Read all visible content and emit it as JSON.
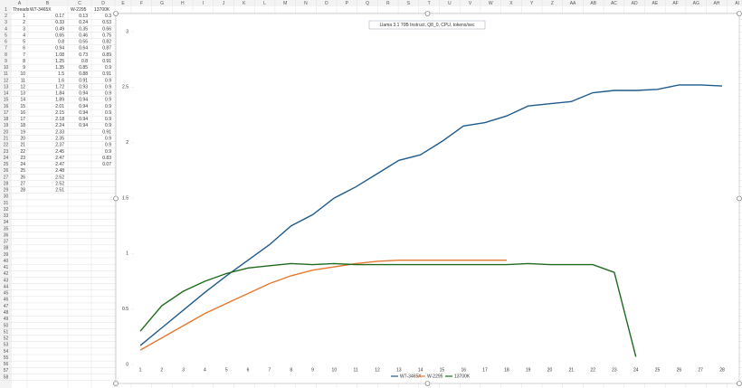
{
  "sheet": {
    "columns": [
      "A",
      "B",
      "C",
      "D",
      "E",
      "F",
      "G",
      "H",
      "I",
      "J",
      "K",
      "L",
      "M",
      "N",
      "O",
      "P",
      "Q",
      "R",
      "S",
      "T",
      "U",
      "V",
      "W",
      "X",
      "Y",
      "Z",
      "AA",
      "AB",
      "AC",
      "AD",
      "AE",
      "AF",
      "AG",
      "AH",
      "AI"
    ],
    "row_numbers": [
      1,
      2,
      3,
      4,
      5,
      6,
      7,
      8,
      9,
      10,
      11,
      12,
      13,
      14,
      15,
      16,
      17,
      18,
      19,
      20,
      21,
      22,
      23,
      24,
      25,
      26,
      27,
      28,
      29,
      30,
      31,
      32,
      33,
      34,
      35,
      36,
      37,
      38,
      39,
      40,
      41,
      42,
      43,
      44,
      45,
      46,
      47,
      48,
      49,
      50,
      51,
      52,
      53,
      54,
      55,
      56,
      57,
      58
    ],
    "threads_header": "Threads"
  },
  "chart_data": {
    "type": "line",
    "title": "Llama 3.1 70B Instruct, Q8_0, CPU, tokens/sec",
    "categories": [
      1,
      2,
      3,
      4,
      5,
      6,
      7,
      8,
      9,
      10,
      11,
      12,
      13,
      14,
      15,
      16,
      17,
      18,
      19,
      20,
      21,
      22,
      23,
      24,
      25,
      26,
      27,
      28
    ],
    "series": [
      {
        "name": "W7-3465X",
        "color": "#1f5b8c",
        "values": [
          0.17,
          0.33,
          0.49,
          0.65,
          0.8,
          0.94,
          1.08,
          1.25,
          1.35,
          1.5,
          1.6,
          1.72,
          1.84,
          1.89,
          2.01,
          2.15,
          2.18,
          2.24,
          2.33,
          2.35,
          2.37,
          2.45,
          2.47,
          2.47,
          2.48,
          2.52,
          2.52,
          2.51
        ]
      },
      {
        "name": "W-2295",
        "color": "#e8772e",
        "values": [
          0.13,
          0.24,
          0.35,
          0.46,
          0.55,
          0.64,
          0.73,
          0.8,
          0.85,
          0.88,
          0.91,
          0.93,
          0.94,
          0.94,
          0.94,
          0.94,
          0.94,
          0.94,
          null,
          null,
          null,
          null,
          null,
          null,
          null,
          null,
          null,
          null
        ]
      },
      {
        "name": "13700K",
        "color": "#1e6b1e",
        "values": [
          0.3,
          0.53,
          0.66,
          0.75,
          0.82,
          0.87,
          0.89,
          0.91,
          0.9,
          0.91,
          0.9,
          0.9,
          0.9,
          0.9,
          0.9,
          0.9,
          0.9,
          0.9,
          0.91,
          0.9,
          0.9,
          0.9,
          0.83,
          0.07,
          null,
          null,
          null,
          null
        ]
      }
    ],
    "ylim": [
      0,
      3
    ],
    "yticks": [
      0,
      0.5,
      1,
      1.5,
      2,
      2.5,
      3
    ],
    "grid": false,
    "legend": "bottom"
  }
}
